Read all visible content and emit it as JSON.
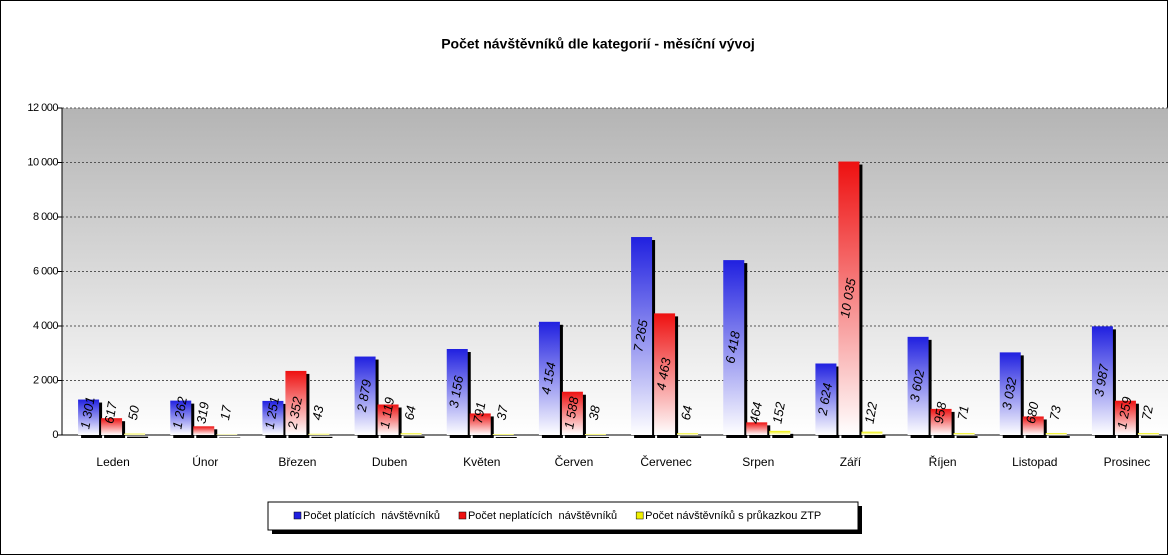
{
  "chart_data": {
    "type": "bar",
    "title": "Počet návštěvníků dle kategorií - měsíční vývoj",
    "categories": [
      "Leden",
      "Únor",
      "Březen",
      "Duben",
      "Květen",
      "Červen",
      "Červenec",
      "Srpen",
      "Září",
      "Říjen",
      "Listopad",
      "Prosinec"
    ],
    "series": [
      {
        "name": "Počet platících  návštěvníků",
        "color": "#2020e0",
        "values": [
          1301,
          1262,
          1251,
          2879,
          3156,
          4154,
          7265,
          6418,
          2624,
          3602,
          3032,
          3987
        ],
        "value_labels": [
          "1 301",
          "1 262",
          "1 251",
          "2 879",
          "3 156",
          "4 154",
          "7 265",
          "6 418",
          "2 624",
          "3 602",
          "3 032",
          "3 987"
        ]
      },
      {
        "name": "Počet neplatících  návštěvníků",
        "color": "#ee1010",
        "values": [
          617,
          319,
          2352,
          1119,
          791,
          1588,
          4463,
          464,
          10035,
          958,
          680,
          1259
        ],
        "value_labels": [
          "617",
          "319",
          "2 352",
          "1 119",
          "791",
          "1 588",
          "4 463",
          "464",
          "10 035",
          "958",
          "680",
          "1 259"
        ]
      },
      {
        "name": "Počet návštěvníků s průkazkou ZTP",
        "color": "#f0f000",
        "values": [
          50,
          17,
          43,
          64,
          37,
          38,
          64,
          152,
          122,
          71,
          73,
          72
        ]
      }
    ],
    "ylim": [
      0,
      12000
    ],
    "yticks": [
      0,
      {
        "value": 2000,
        "label": "2 000"
      },
      {
        "value": 4000,
        "label": "4 000"
      },
      {
        "value": 6000,
        "label": "6 000"
      },
      {
        "value": 8000,
        "label": "8 000"
      },
      {
        "value": 10000,
        "label": "10 000"
      },
      {
        "value": 12000,
        "label": "12 000"
      }
    ],
    "grid": true
  }
}
